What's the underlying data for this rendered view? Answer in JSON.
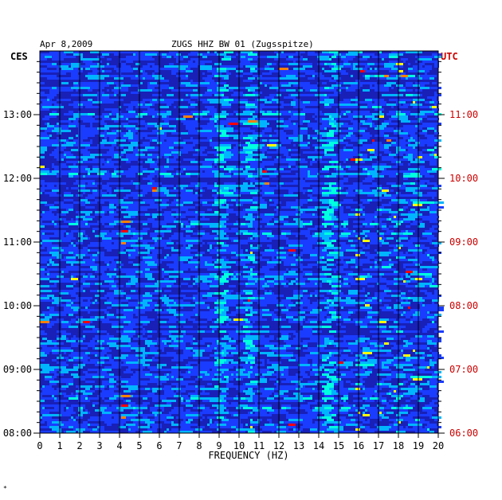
{
  "chart_data": {
    "type": "heatmap",
    "date": "Apr 8,2009",
    "title": "ZUGS HHZ BW 01 (Zugsspitze)",
    "left_timezone": "CES",
    "right_timezone": "UTC",
    "xlabel": "FREQUENCY (HZ)",
    "xlim": [
      0,
      20
    ],
    "x_ticks": [
      "0",
      "1",
      "2",
      "3",
      "4",
      "5",
      "6",
      "7",
      "8",
      "9",
      "10",
      "11",
      "12",
      "13",
      "14",
      "15",
      "16",
      "17",
      "18",
      "19",
      "20"
    ],
    "left_ticks": [
      "08:00",
      "09:00",
      "10:00",
      "11:00",
      "12:00",
      "13:00"
    ],
    "right_ticks": [
      "06:00",
      "07:00",
      "08:00",
      "09:00",
      "10:00",
      "11:00"
    ],
    "left_range_hours": [
      8,
      14
    ],
    "right_range_hours": [
      6,
      12
    ],
    "colors": {
      "background": "#1820b8",
      "axis": "#000000",
      "utc_text": "#cc0000",
      "gridline": "#000000"
    },
    "color_scale": [
      "#0a12a8",
      "#1a3cff",
      "#00b4ff",
      "#00ffe0",
      "#ffff00",
      "#ff8000",
      "#ff0000"
    ],
    "strong_bands_hz": [
      9,
      10.4,
      14.4
    ]
  },
  "footer_mark": "*"
}
